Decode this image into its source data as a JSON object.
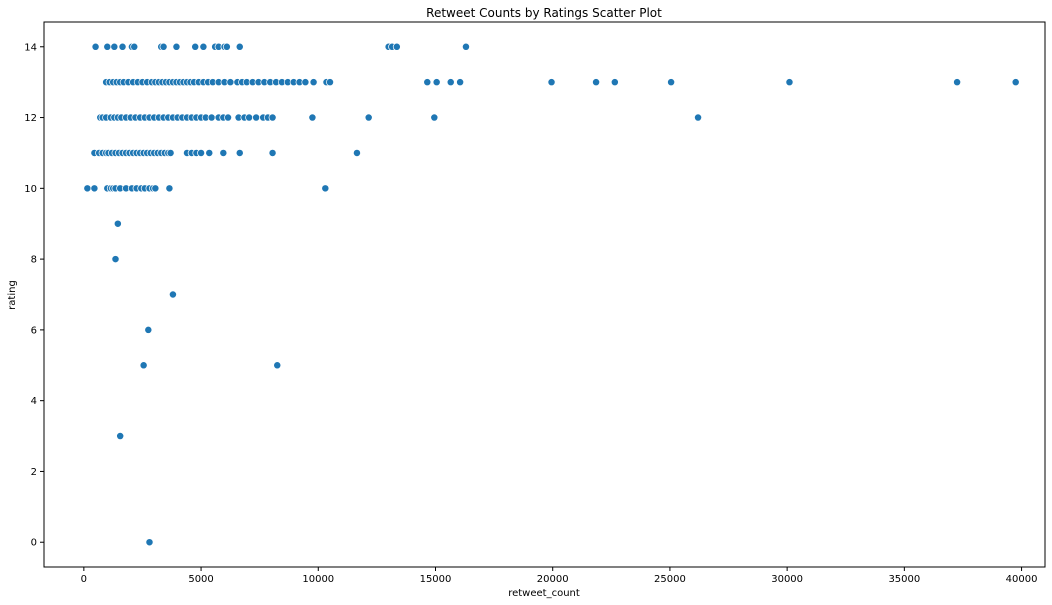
{
  "chart_data": {
    "type": "scatter",
    "title": "Retweet Counts by Ratings Scatter Plot",
    "xlabel": "retweet_count",
    "ylabel": "rating",
    "xlim": [
      -1700,
      41000
    ],
    "ylim": [
      -0.7,
      14.7
    ],
    "xticks": [
      0,
      5000,
      10000,
      15000,
      20000,
      25000,
      30000,
      35000,
      40000
    ],
    "yticks": [
      0,
      2,
      4,
      6,
      8,
      10,
      12,
      14
    ],
    "grid": false,
    "legend": "none",
    "color": "#1f77b4",
    "series": [
      {
        "x": [
          500,
          1000,
          1300,
          1650,
          2050,
          2150,
          3300,
          3400,
          3950,
          4750,
          5100,
          5600,
          5750,
          6000,
          6100,
          6650,
          13000,
          13150,
          13350,
          16300,
          950,
          1100,
          1250,
          1400,
          1550,
          1700,
          1900,
          2100,
          2300,
          2500,
          2700,
          2900,
          3050,
          3200,
          3350,
          3500,
          3650,
          3800,
          3950,
          4100,
          4250,
          4400,
          4550,
          4700,
          4900,
          5100,
          5300,
          5500,
          5750,
          6000,
          6250,
          6550,
          6750,
          6950,
          7200,
          7450,
          7700,
          7950,
          8200,
          8450,
          8700,
          8950,
          9200,
          9450,
          9800,
          10350,
          10500,
          14650,
          15050,
          15650,
          16050,
          19950,
          21850,
          22650,
          25050,
          30100,
          37250,
          39750,
          700,
          800,
          950,
          1150,
          1300,
          1450,
          1600,
          1800,
          2000,
          2200,
          2400,
          2600,
          2800,
          3000,
          3200,
          3400,
          3600,
          3800,
          4000,
          4200,
          4400,
          4600,
          4800,
          5000,
          5200,
          5450,
          5750,
          5950,
          6150,
          6600,
          6850,
          7050,
          7350,
          7650,
          7850,
          8050,
          9750,
          12150,
          14950,
          26200,
          450,
          650,
          800,
          950,
          1050,
          1200,
          1350,
          1500,
          1650,
          1800,
          1950,
          2100,
          2250,
          2400,
          2550,
          2700,
          2850,
          3000,
          3150,
          3300,
          3450,
          3600,
          3700,
          4400,
          4600,
          4800,
          5000,
          5350,
          5950,
          6650,
          8050,
          11650,
          150,
          450,
          1000,
          1150,
          1250,
          1350,
          1550,
          1800,
          2050,
          2250,
          2450,
          2600,
          2800,
          2950,
          3050,
          3650,
          10300,
          1450,
          1350,
          3800,
          2750,
          2550,
          8250,
          1550,
          2800
        ],
        "y": [
          14,
          14,
          14,
          14,
          14,
          14,
          14,
          14,
          14,
          14,
          14,
          14,
          14,
          14,
          14,
          14,
          14,
          14,
          14,
          14,
          13,
          13,
          13,
          13,
          13,
          13,
          13,
          13,
          13,
          13,
          13,
          13,
          13,
          13,
          13,
          13,
          13,
          13,
          13,
          13,
          13,
          13,
          13,
          13,
          13,
          13,
          13,
          13,
          13,
          13,
          13,
          13,
          13,
          13,
          13,
          13,
          13,
          13,
          13,
          13,
          13,
          13,
          13,
          13,
          13,
          13,
          13,
          13,
          13,
          13,
          13,
          13,
          13,
          13,
          13,
          13,
          13,
          13,
          12,
          12,
          12,
          12,
          12,
          12,
          12,
          12,
          12,
          12,
          12,
          12,
          12,
          12,
          12,
          12,
          12,
          12,
          12,
          12,
          12,
          12,
          12,
          12,
          12,
          12,
          12,
          12,
          12,
          12,
          12,
          12,
          12,
          12,
          12,
          12,
          12,
          12,
          12,
          12,
          11,
          11,
          11,
          11,
          11,
          11,
          11,
          11,
          11,
          11,
          11,
          11,
          11,
          11,
          11,
          11,
          11,
          11,
          11,
          11,
          11,
          11,
          11,
          11,
          11,
          11,
          11,
          11,
          11,
          11,
          11,
          11,
          10,
          10,
          10,
          10,
          10,
          10,
          10,
          10,
          10,
          10,
          10,
          10,
          10,
          10,
          10,
          10,
          10,
          9,
          8,
          7,
          6,
          5,
          5,
          3,
          0
        ]
      }
    ]
  }
}
